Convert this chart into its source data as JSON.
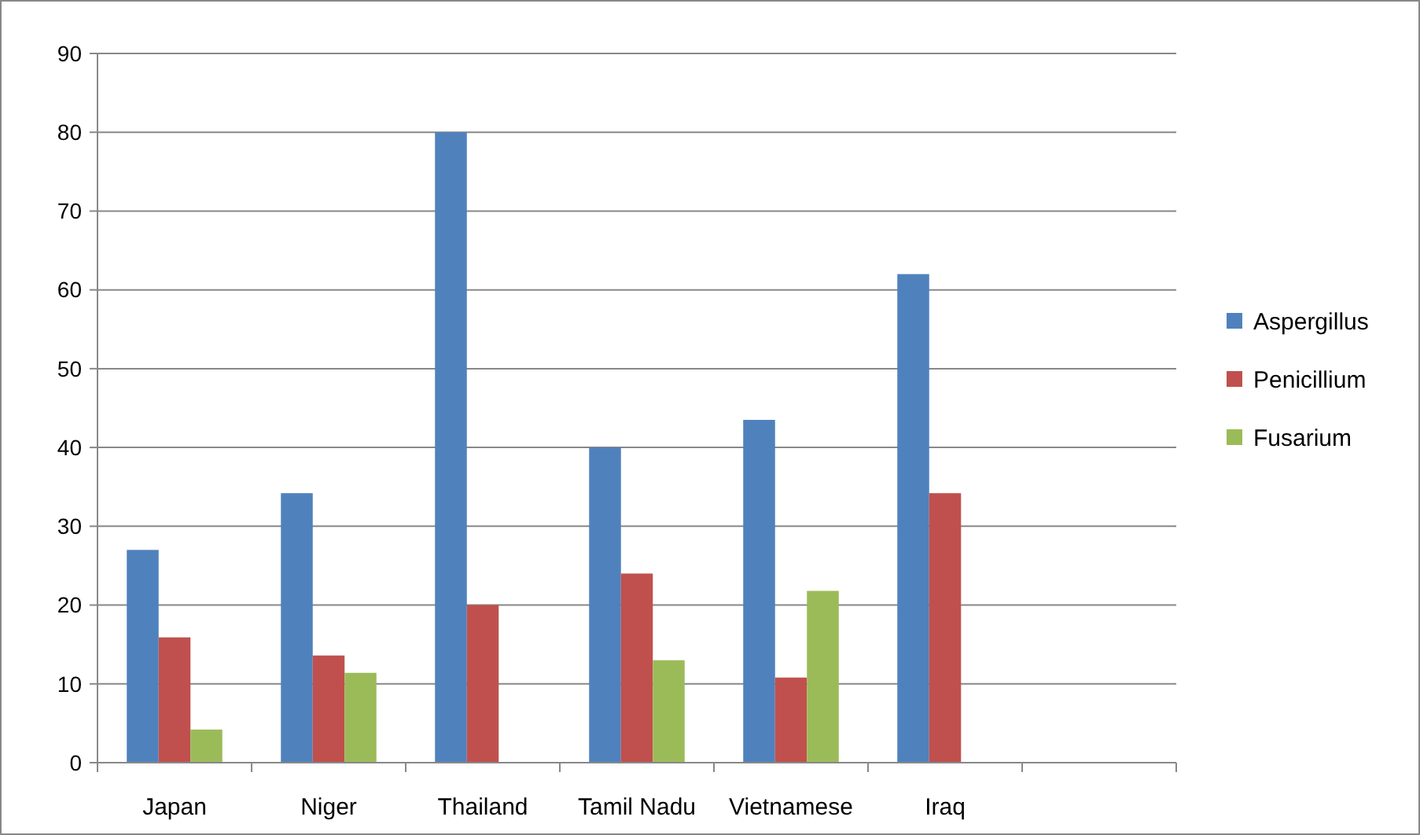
{
  "chart_data": {
    "type": "bar",
    "categories": [
      "Japan",
      "Niger",
      "Thailand",
      "Tamil Nadu",
      "Vietnamese",
      "Iraq",
      null
    ],
    "series": [
      {
        "name": "Aspergillus",
        "color": "#4f81bd",
        "values": [
          27,
          34.2,
          80,
          40,
          43.5,
          62,
          null
        ]
      },
      {
        "name": "Penicillium",
        "color": "#c0504d",
        "values": [
          15.9,
          13.6,
          20,
          24,
          10.8,
          34.2,
          null
        ]
      },
      {
        "name": "Fusarium",
        "color": "#9bbb59",
        "values": [
          4.2,
          11.4,
          null,
          13,
          21.8,
          null,
          null
        ]
      }
    ],
    "ylim": [
      0,
      90
    ],
    "yticks": [
      0,
      10,
      20,
      30,
      40,
      50,
      60,
      70,
      80,
      90
    ],
    "grid": "y",
    "legend": "right"
  }
}
